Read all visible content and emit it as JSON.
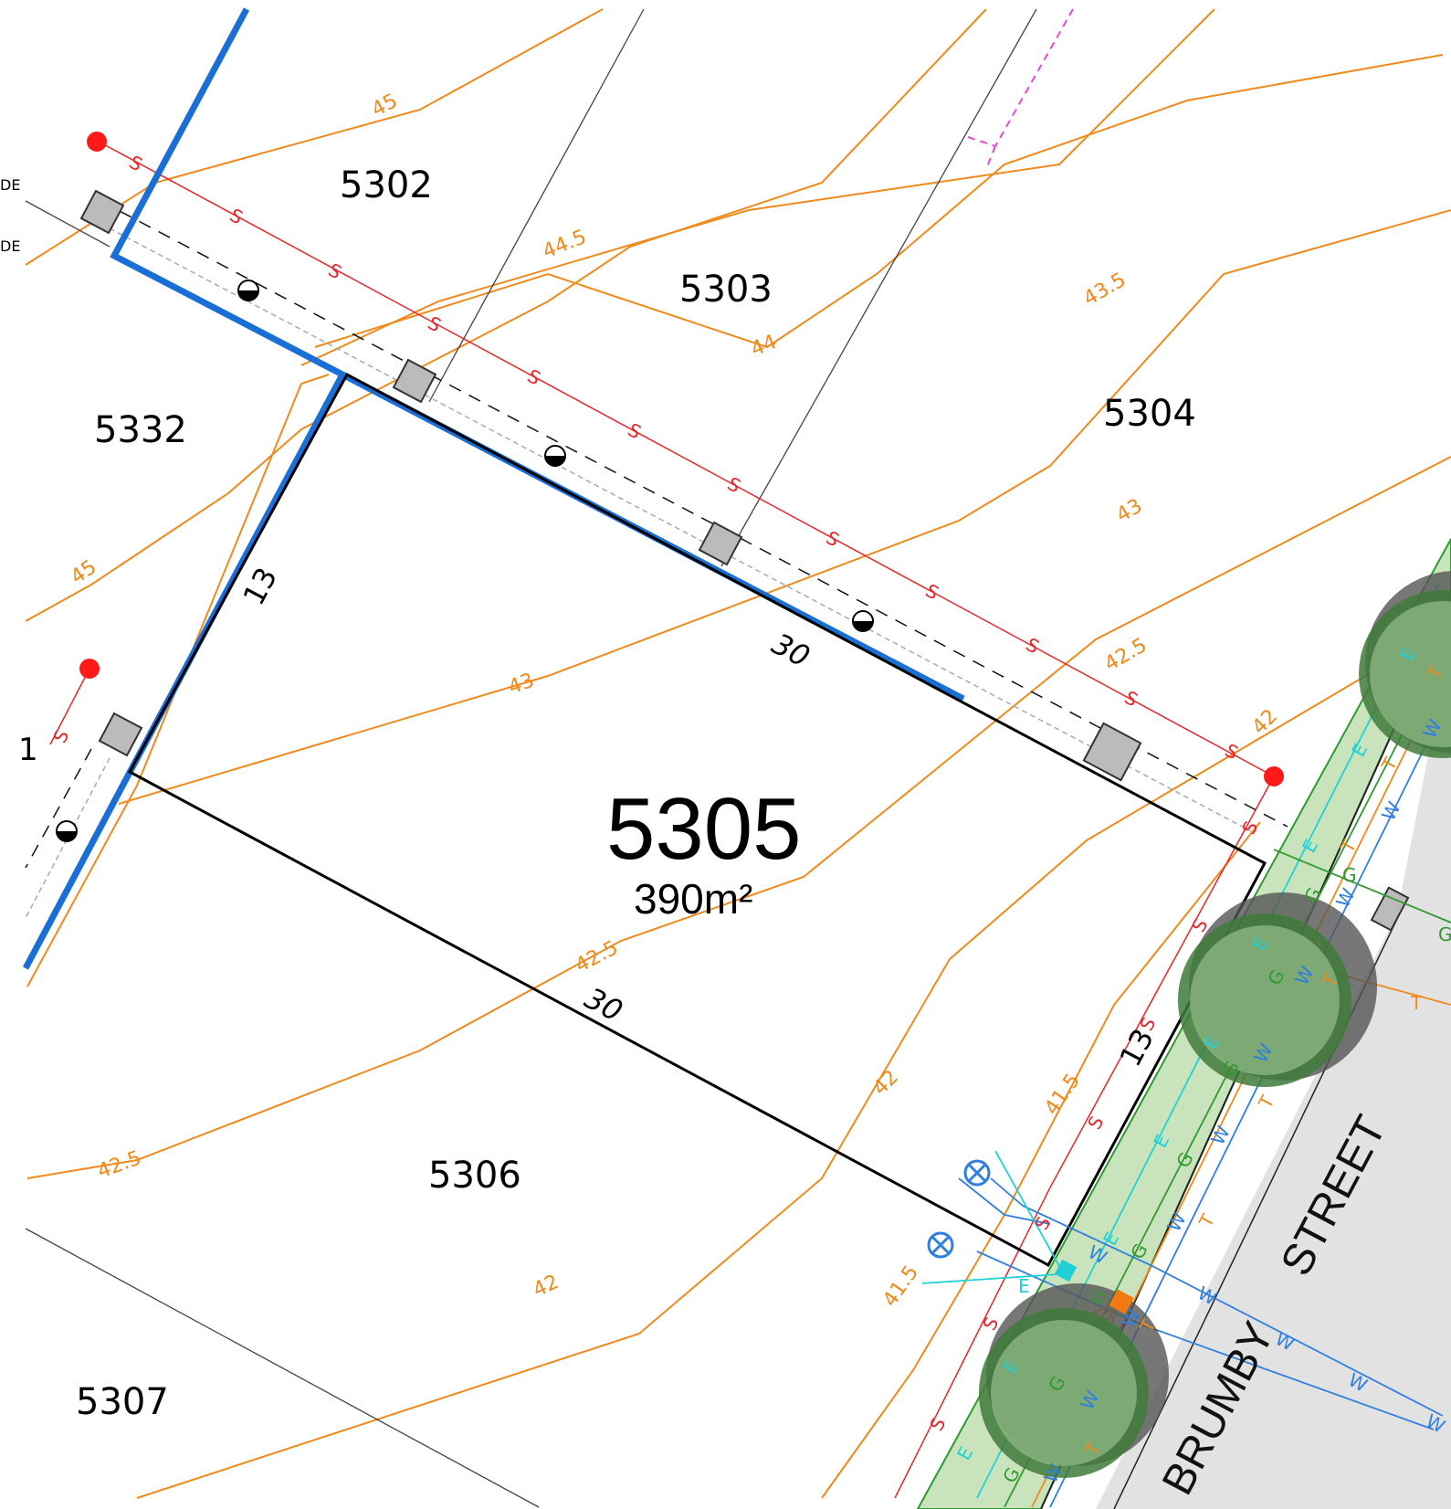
{
  "map": {
    "main_lot": {
      "number": "5305",
      "area": "390m²"
    },
    "lots": [
      {
        "id": "5302",
        "number": "5302"
      },
      {
        "id": "5303",
        "number": "5303"
      },
      {
        "id": "5304",
        "number": "5304"
      },
      {
        "id": "5332",
        "number": "5332"
      },
      {
        "id": "5306",
        "number": "5306"
      },
      {
        "id": "5307",
        "number": "5307"
      }
    ],
    "dimensions": {
      "side_left": "13",
      "top": "30",
      "bottom": "30",
      "front": "13"
    },
    "street": {
      "word1": "BRUMBY",
      "word2": "STREET"
    },
    "contours": [
      "45",
      "44.5",
      "44",
      "43.5",
      "43",
      "42.5",
      "42",
      "41.5"
    ],
    "service_codes": {
      "sewer": "S",
      "water": "W",
      "electric": "E",
      "gas": "G",
      "telecom": "T"
    },
    "edge_text": {
      "top": "DE",
      "bottom": "DE",
      "left": "1"
    },
    "colors": {
      "contour": "#f08a1c",
      "sewer": "#e8262b",
      "boundary_blue": "#1a6fd6",
      "verge": "#c9e4bd",
      "road": "#e2e2e2",
      "water": "#2f7fe0",
      "electric": "#1fd1d6",
      "gas": "#2f9a2f",
      "telecom": "#f08a1c",
      "easement": "#e04ad8"
    }
  }
}
